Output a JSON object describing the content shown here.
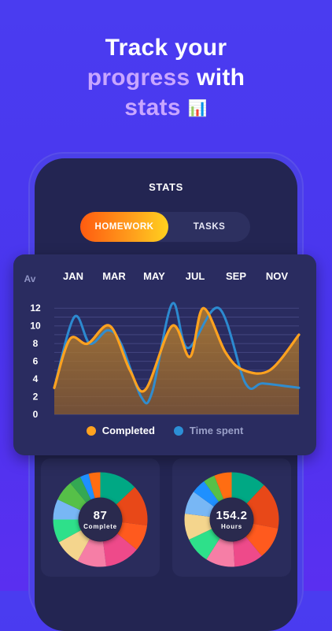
{
  "headline": {
    "line1": "Track your",
    "line2_accent": "progress",
    "line2_rest": " with",
    "line3_accent": "stats",
    "line3_icon": "📊"
  },
  "screen": {
    "title": "STATS",
    "tabs": [
      {
        "label": "HOMEWORK",
        "active": true
      },
      {
        "label": "TASKS",
        "active": false
      }
    ]
  },
  "chart_data": {
    "type": "line",
    "title": "",
    "corner_label": "Av",
    "months": [
      "JAN",
      "MAR",
      "MAY",
      "JUL",
      "SEP",
      "NOV"
    ],
    "yticks": [
      0,
      2,
      4,
      6,
      8,
      10,
      12
    ],
    "ylim": [
      0,
      13
    ],
    "xlim": [
      0,
      11
    ],
    "grid": true,
    "legend_position": "bottom",
    "series": [
      {
        "name": "Completed",
        "color": "#ffa21f",
        "x": [
          0,
          0.7,
          1.5,
          2.5,
          3.4,
          4.1,
          5.3,
          6.1,
          6.7,
          7.7,
          8.5,
          9.7,
          11
        ],
        "y": [
          3,
          8.5,
          8,
          10,
          5,
          2.8,
          10,
          6.5,
          12,
          7,
          5,
          5,
          9
        ]
      },
      {
        "name": "Time spent",
        "color": "#2c8fd6",
        "x": [
          0,
          0.9,
          1.6,
          2.4,
          3.0,
          3.9,
          4.4,
          5.3,
          6.0,
          7.4,
          8.6,
          9.4,
          11
        ],
        "y": [
          3,
          11,
          8,
          9.5,
          8,
          2,
          2.5,
          12.5,
          7.5,
          12,
          3.5,
          3.5,
          3
        ]
      }
    ],
    "legend_text_colors": {
      "Completed": "#ffffff",
      "Time spent": "#9aa0c8"
    }
  },
  "donuts": [
    {
      "value": "87",
      "label": "Complete",
      "segments": [
        {
          "color": "#00a884",
          "value": 13
        },
        {
          "color": "#e84818",
          "value": 14
        },
        {
          "color": "#ff5a1e",
          "value": 9
        },
        {
          "color": "#ee4a8a",
          "value": 12
        },
        {
          "color": "#f67ea6",
          "value": 10
        },
        {
          "color": "#f4d58d",
          "value": 9
        },
        {
          "color": "#2ee08a",
          "value": 8
        },
        {
          "color": "#78b7f5",
          "value": 7
        },
        {
          "color": "#56c048",
          "value": 7
        },
        {
          "color": "#34a853",
          "value": 4
        },
        {
          "color": "#1e90ff",
          "value": 3
        },
        {
          "color": "#ff6d12",
          "value": 4
        }
      ]
    },
    {
      "value": "154.2",
      "label": "Hours",
      "segments": [
        {
          "color": "#00a884",
          "value": 12
        },
        {
          "color": "#e84818",
          "value": 16
        },
        {
          "color": "#ff5a1e",
          "value": 11
        },
        {
          "color": "#ee4a8a",
          "value": 10
        },
        {
          "color": "#f67ea6",
          "value": 10
        },
        {
          "color": "#2ee08a",
          "value": 9
        },
        {
          "color": "#f4d58d",
          "value": 9
        },
        {
          "color": "#78b7f5",
          "value": 8
        },
        {
          "color": "#1e90ff",
          "value": 5
        },
        {
          "color": "#56c048",
          "value": 4
        },
        {
          "color": "#ff6d12",
          "value": 6
        }
      ]
    }
  ]
}
